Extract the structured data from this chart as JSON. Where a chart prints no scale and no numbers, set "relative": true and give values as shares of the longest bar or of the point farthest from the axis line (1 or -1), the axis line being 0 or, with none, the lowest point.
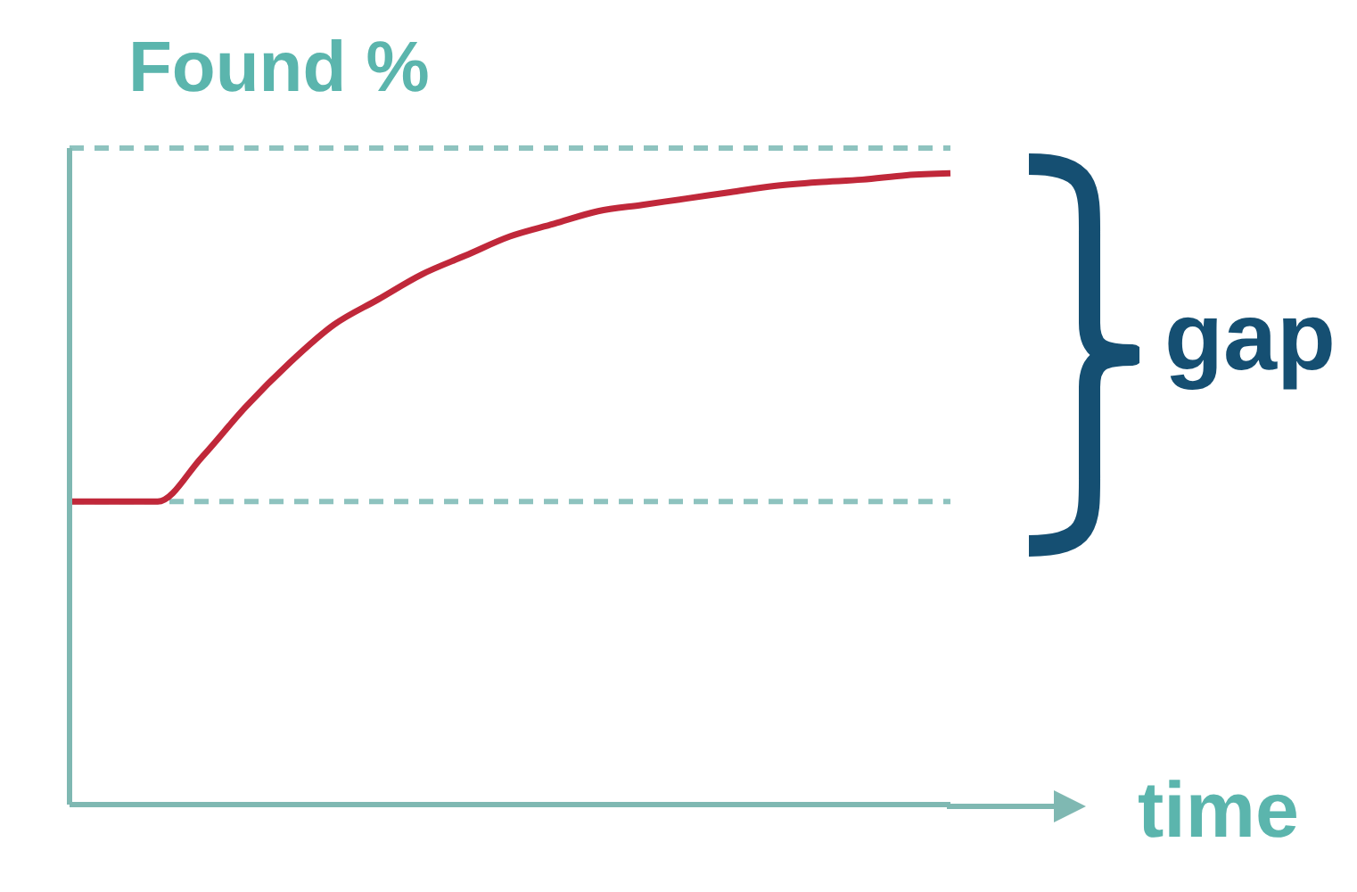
{
  "chart_data": {
    "type": "line",
    "relative": true,
    "ylabel": "Found %",
    "xlabel": "time",
    "annotations": [
      "gap"
    ],
    "categories": [
      null,
      null,
      null,
      null,
      null,
      null,
      null,
      null,
      null,
      null,
      null,
      null,
      null,
      null,
      null,
      null,
      null,
      null,
      null,
      null,
      null
    ],
    "series": [
      {
        "color": "#c0283a",
        "values": [
          0.48,
          0.48,
          0.48,
          0.55,
          0.63,
          0.7,
          0.76,
          0.8,
          0.84,
          0.87,
          0.9,
          0.92,
          0.94,
          0.95,
          0.96,
          0.97,
          0.98,
          0.986,
          0.99,
          0.997,
          1
        ]
      }
    ],
    "ref_lines": [
      {
        "axis": "y",
        "value": 1.04,
        "color": "#8ec3bf",
        "line_style": "dashed"
      },
      {
        "axis": "y",
        "value": 0.48,
        "color": "#8ec3bf",
        "line_style": "dashed"
      }
    ],
    "grid": false,
    "marker": "none"
  }
}
